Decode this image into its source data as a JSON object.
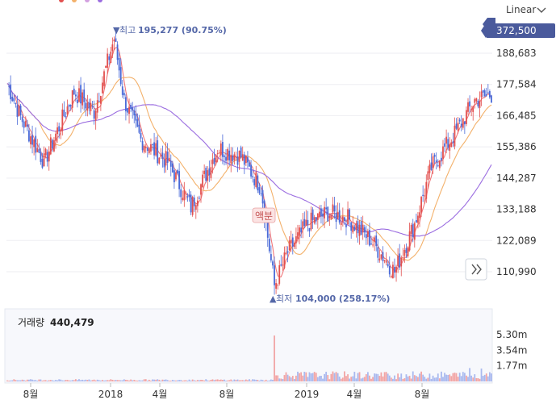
{
  "header": {
    "scale_label": "Linear",
    "current_price": "372,500"
  },
  "colors": {
    "up": "#e2504f",
    "down": "#4a6ad8",
    "ma5": "#f0777a",
    "ma20": "#f3b16b",
    "ma60": "#d3a0e0",
    "ma120": "#9b6de0",
    "accent": "#5467a8",
    "price_tag": "#4a5a9c"
  },
  "icons": {
    "dropdown": "chevron-down-icon",
    "expand": "double-chevron-right-icon"
  },
  "chart_data": [
    {
      "type": "candlestick",
      "title": "",
      "y_ticks": [
        "188,683",
        "177,584",
        "166,485",
        "155,386",
        "144,287",
        "133,188",
        "122,089",
        "110,990"
      ],
      "y_tick_values": [
        188683,
        177584,
        166485,
        155386,
        144287,
        133188,
        122089,
        110990
      ],
      "x_ticks": [
        "8월",
        "2018",
        "4월",
        "8월",
        "",
        "2019",
        "4월",
        "8월"
      ],
      "annotations": {
        "high_marker": "▼",
        "high_label": "최고",
        "high_value": "195,277 (90.75%)",
        "low_marker": "▲",
        "low_label": "최저",
        "low_value": "104,000 (258.17%)",
        "event_label": "액분"
      },
      "key_points": [
        {
          "t": 0,
          "close": 178000
        },
        {
          "t": 8,
          "close": 166000
        },
        {
          "t": 22,
          "close": 150000
        },
        {
          "t": 40,
          "close": 175000
        },
        {
          "t": 52,
          "close": 168000
        },
        {
          "t": 64,
          "close": 194000
        },
        {
          "t": 70,
          "close": 172000
        },
        {
          "t": 80,
          "close": 158000
        },
        {
          "t": 96,
          "close": 150000
        },
        {
          "t": 110,
          "close": 134000
        },
        {
          "t": 126,
          "close": 155000
        },
        {
          "t": 140,
          "close": 152000
        },
        {
          "t": 152,
          "close": 141000
        },
        {
          "t": 160,
          "close": 106000
        },
        {
          "t": 168,
          "close": 118000
        },
        {
          "t": 180,
          "close": 128000
        },
        {
          "t": 192,
          "close": 132000
        },
        {
          "t": 204,
          "close": 130000
        },
        {
          "t": 218,
          "close": 122000
        },
        {
          "t": 232,
          "close": 111000
        },
        {
          "t": 244,
          "close": 128000
        },
        {
          "t": 254,
          "close": 148000
        },
        {
          "t": 268,
          "close": 160000
        },
        {
          "t": 280,
          "close": 172000
        },
        {
          "t": 290,
          "close": 174000
        }
      ]
    },
    {
      "type": "bar",
      "title": "거래량",
      "title_value": "440,479",
      "y_ticks": [
        "5.30m",
        "3.54m",
        "1.77m"
      ],
      "y_tick_values": [
        5300000,
        3540000,
        1770000
      ],
      "spike_value": 5200000
    }
  ]
}
